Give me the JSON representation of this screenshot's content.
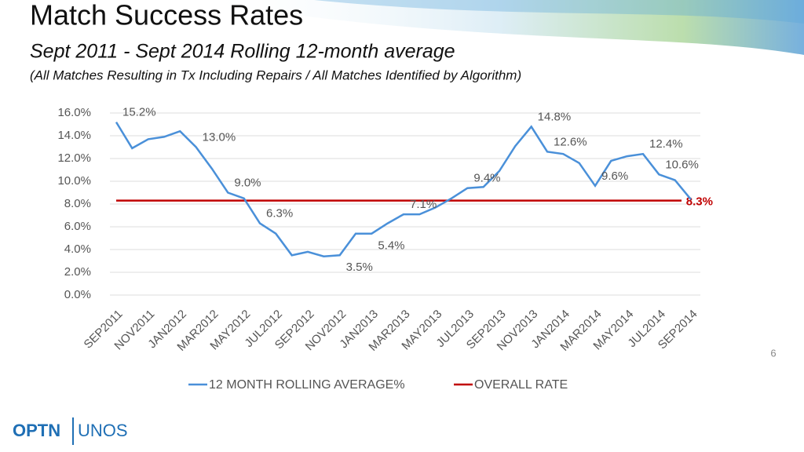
{
  "chart_data": {
    "type": "line",
    "title": "Match Success Rates",
    "subtitle": "Sept 2011 - Sept 2014 Rolling 12-month average",
    "note": "(All Matches Resulting in Tx Including Repairs / All Matches Identified by Algorithm)",
    "categories": [
      "SEP2011",
      null,
      "NOV2011",
      null,
      "JAN2012",
      null,
      "MAR2012",
      null,
      "MAY2012",
      null,
      "JUL2012",
      null,
      "SEP2012",
      null,
      "NOV2012",
      null,
      "JAN2013",
      null,
      "MAR2013",
      null,
      "MAY2013",
      null,
      "JUL2013",
      null,
      "SEP2013",
      null,
      "NOV2013",
      null,
      "JAN2014",
      null,
      "MAR2014",
      null,
      "MAY2014",
      null,
      "JUL2014",
      null,
      "SEP2014"
    ],
    "series": [
      {
        "name": "12 MONTH ROLLING AVERAGE%",
        "color": "#4a90d9",
        "values": [
          15.2,
          12.9,
          13.7,
          13.9,
          14.4,
          13.0,
          11.1,
          9.0,
          8.5,
          6.3,
          5.4,
          3.5,
          3.8,
          3.4,
          3.5,
          5.4,
          5.4,
          6.3,
          7.1,
          7.1,
          7.7,
          8.5,
          9.4,
          9.5,
          10.9,
          13.1,
          14.8,
          12.6,
          12.4,
          11.6,
          9.6,
          11.8,
          12.2,
          12.4,
          10.6,
          10.1,
          8.4
        ],
        "value_labels": [
          "15.2%",
          null,
          null,
          null,
          null,
          "13.0%",
          null,
          "9.0%",
          null,
          "6.3%",
          null,
          null,
          null,
          null,
          "3.5%",
          null,
          "5.4%",
          null,
          "7.1%",
          null,
          null,
          null,
          "9.4%",
          null,
          null,
          null,
          "14.8%",
          "12.6%",
          null,
          null,
          "9.6%",
          null,
          null,
          "12.4%",
          "10.6%",
          null,
          null
        ]
      }
    ],
    "reference_line": {
      "name": "OVERALL RATE",
      "value": 8.3,
      "label": "8.3%",
      "color": "#c00000"
    },
    "ylim": [
      0,
      16
    ],
    "yticks": [
      {
        "value": 0,
        "label": "0.0%"
      },
      {
        "value": 2,
        "label": "2.0%"
      },
      {
        "value": 4,
        "label": "4.0%"
      },
      {
        "value": 6,
        "label": "6.0%"
      },
      {
        "value": 8,
        "label": "8.0%"
      },
      {
        "value": 10,
        "label": "10.0%"
      },
      {
        "value": 12,
        "label": "12.0%"
      },
      {
        "value": 14,
        "label": "14.0%"
      },
      {
        "value": 16,
        "label": "16.0%"
      }
    ],
    "grid": true
  },
  "slide_number": "6",
  "logo": [
    "OPTN",
    "UNOS"
  ]
}
